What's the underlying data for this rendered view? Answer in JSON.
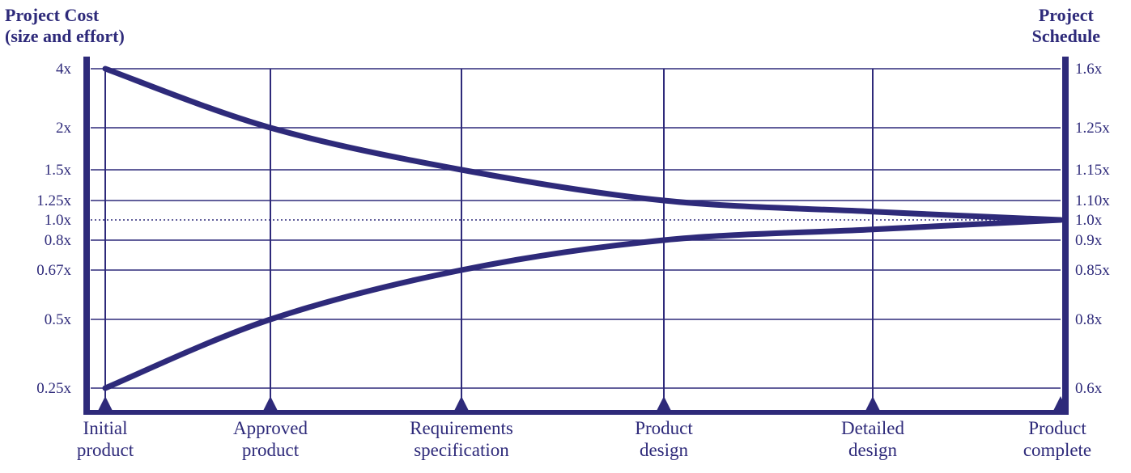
{
  "chart_data": {
    "type": "line",
    "left_axis_title": "Project Cost\n(size and effort)",
    "right_axis_title": "Project\nSchedule",
    "left_ticks": [
      "4x",
      "2x",
      "1.5x",
      "1.25x",
      "1.0x",
      "0.8x",
      "0.67x",
      "0.5x",
      "0.25x"
    ],
    "right_ticks": [
      "1.6x",
      "1.25x",
      "1.15x",
      "1.10x",
      "1.0x",
      "0.9x",
      "0.85x",
      "0.8x",
      "0.6x"
    ],
    "milestones": [
      {
        "line1": "Initial",
        "line2": "product"
      },
      {
        "line1": "Approved",
        "line2": "product"
      },
      {
        "line1": "Requirements",
        "line2": "specification"
      },
      {
        "line1": "Product",
        "line2": "design"
      },
      {
        "line1": "Detailed",
        "line2": "design"
      },
      {
        "line1": "Product",
        "line2": "complete"
      }
    ],
    "series": [
      {
        "values": [
          4,
          2,
          1.5,
          1.25,
          1.1,
          1.0
        ]
      },
      {
        "values": [
          0.25,
          0.5,
          0.67,
          0.8,
          0.9,
          1.0
        ]
      }
    ],
    "reference_line": 1.0,
    "colors": {
      "primary": "#2e2a7a"
    }
  }
}
